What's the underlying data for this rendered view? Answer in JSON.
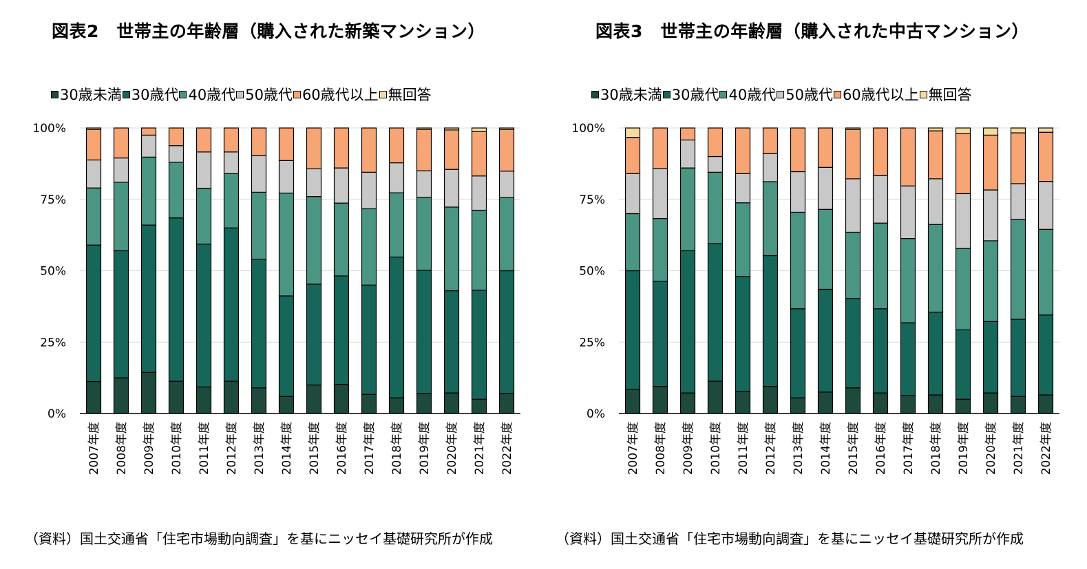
{
  "colors": {
    "under30": "#1e4a3e",
    "age30s": "#17665a",
    "age40s": "#4a9683",
    "age50s": "#c8c8c8",
    "age60plus": "#f7a574",
    "no_answer": "#f5dba0",
    "gridline": "#d9d9d9",
    "axis": "#000000"
  },
  "chart_data": [
    {
      "type": "bar",
      "stacked": true,
      "title": "図表2　世帯主の年齢層（購入された新築マンション）",
      "source": "（資料）国土交通省「住宅市場動向調査」を基にニッセイ基礎研究所が作成",
      "categories": [
        "2007年度",
        "2008年度",
        "2009年度",
        "2010年度",
        "2011年度",
        "2012年度",
        "2013年度",
        "2014年度",
        "2015年度",
        "2016年度",
        "2017年度",
        "2018年度",
        "2019年度",
        "2020年度",
        "2021年度",
        "2022年度"
      ],
      "ylim": [
        0,
        100
      ],
      "yticks": [
        "0%",
        "25%",
        "50%",
        "75%",
        "100%"
      ],
      "legend": [
        "30歳未満",
        "30歳代",
        "40歳代",
        "50歳代",
        "60歳代以上",
        "無回答"
      ],
      "series": [
        {
          "name": "30歳未満",
          "key": "under30",
          "values": [
            11.2,
            12.5,
            14.4,
            11.3,
            9.3,
            11.3,
            9.0,
            6.0,
            10.0,
            10.2,
            6.7,
            5.5,
            7.0,
            7.2,
            5.0,
            7.0
          ]
        },
        {
          "name": "30歳代",
          "key": "age30s",
          "values": [
            47.8,
            44.5,
            51.6,
            57.2,
            50.0,
            53.7,
            45.0,
            35.2,
            35.3,
            38.0,
            38.3,
            49.3,
            43.2,
            35.8,
            38.2,
            43.0
          ]
        },
        {
          "name": "40歳代",
          "key": "age40s",
          "values": [
            20.0,
            24.0,
            23.8,
            19.5,
            19.6,
            19.0,
            23.5,
            36.0,
            30.7,
            25.5,
            26.7,
            22.5,
            25.5,
            29.3,
            28.0,
            25.6
          ]
        },
        {
          "name": "50歳代",
          "key": "age50s",
          "values": [
            9.8,
            8.5,
            7.7,
            5.8,
            12.7,
            7.6,
            12.8,
            11.4,
            9.7,
            12.3,
            12.8,
            10.5,
            9.3,
            13.2,
            12.0,
            9.3
          ]
        },
        {
          "name": "60歳代以上",
          "key": "age60plus",
          "values": [
            10.7,
            10.5,
            2.5,
            6.2,
            8.4,
            8.4,
            9.7,
            11.4,
            14.3,
            14.0,
            15.5,
            12.2,
            14.5,
            13.8,
            15.5,
            14.6
          ]
        },
        {
          "name": "無回答",
          "key": "no_answer",
          "values": [
            0.5,
            0.0,
            0.0,
            0.0,
            0.0,
            0.0,
            0.0,
            0.0,
            0.0,
            0.0,
            0.0,
            0.0,
            0.5,
            0.7,
            1.3,
            0.5
          ]
        }
      ]
    },
    {
      "type": "bar",
      "stacked": true,
      "title": "図表3　世帯主の年齢層（購入された中古マンション）",
      "source": "（資料）国土交通省「住宅市場動向調査」を基にニッセイ基礎研究所が作成",
      "categories": [
        "2007年度",
        "2008年度",
        "2009年度",
        "2010年度",
        "2011年度",
        "2012年度",
        "2013年度",
        "2014年度",
        "2015年度",
        "2016年度",
        "2017年度",
        "2018年度",
        "2019年度",
        "2020年度",
        "2021年度",
        "2022年度"
      ],
      "ylim": [
        0,
        100
      ],
      "yticks": [
        "0%",
        "25%",
        "50%",
        "75%",
        "100%"
      ],
      "legend": [
        "30歳未満",
        "30歳代",
        "40歳代",
        "50歳代",
        "60歳代以上",
        "無回答"
      ],
      "series": [
        {
          "name": "30歳未満",
          "key": "under30",
          "values": [
            8.4,
            9.5,
            7.2,
            11.3,
            7.7,
            9.5,
            5.5,
            7.5,
            9.0,
            7.2,
            6.3,
            6.5,
            5.0,
            7.2,
            6.0,
            6.5
          ]
        },
        {
          "name": "30歳代",
          "key": "age30s",
          "values": [
            41.6,
            36.8,
            49.8,
            48.2,
            40.3,
            45.8,
            31.2,
            36.0,
            31.3,
            29.5,
            25.5,
            29.0,
            24.3,
            25.0,
            27.0,
            28.0
          ]
        },
        {
          "name": "40歳代",
          "key": "age40s",
          "values": [
            20.0,
            22.0,
            29.0,
            25.0,
            25.8,
            25.9,
            33.8,
            28.0,
            23.2,
            30.0,
            29.5,
            30.7,
            28.5,
            28.3,
            35.0,
            30.0
          ]
        },
        {
          "name": "50歳代",
          "key": "age50s",
          "values": [
            14.0,
            17.5,
            9.8,
            5.5,
            10.2,
            9.8,
            14.2,
            14.7,
            18.7,
            16.6,
            18.4,
            16.0,
            19.2,
            17.8,
            12.5,
            16.8
          ]
        },
        {
          "name": "60歳代以上",
          "key": "age60plus",
          "values": [
            12.7,
            14.2,
            4.2,
            10.0,
            16.0,
            9.0,
            15.3,
            13.8,
            17.3,
            16.7,
            20.3,
            16.8,
            21.0,
            19.2,
            17.8,
            17.2
          ]
        },
        {
          "name": "無回答",
          "key": "no_answer",
          "values": [
            3.3,
            0.0,
            0.0,
            0.0,
            0.0,
            0.0,
            0.0,
            0.0,
            0.5,
            0.0,
            0.0,
            1.0,
            2.0,
            2.5,
            1.7,
            1.5
          ]
        }
      ]
    }
  ]
}
